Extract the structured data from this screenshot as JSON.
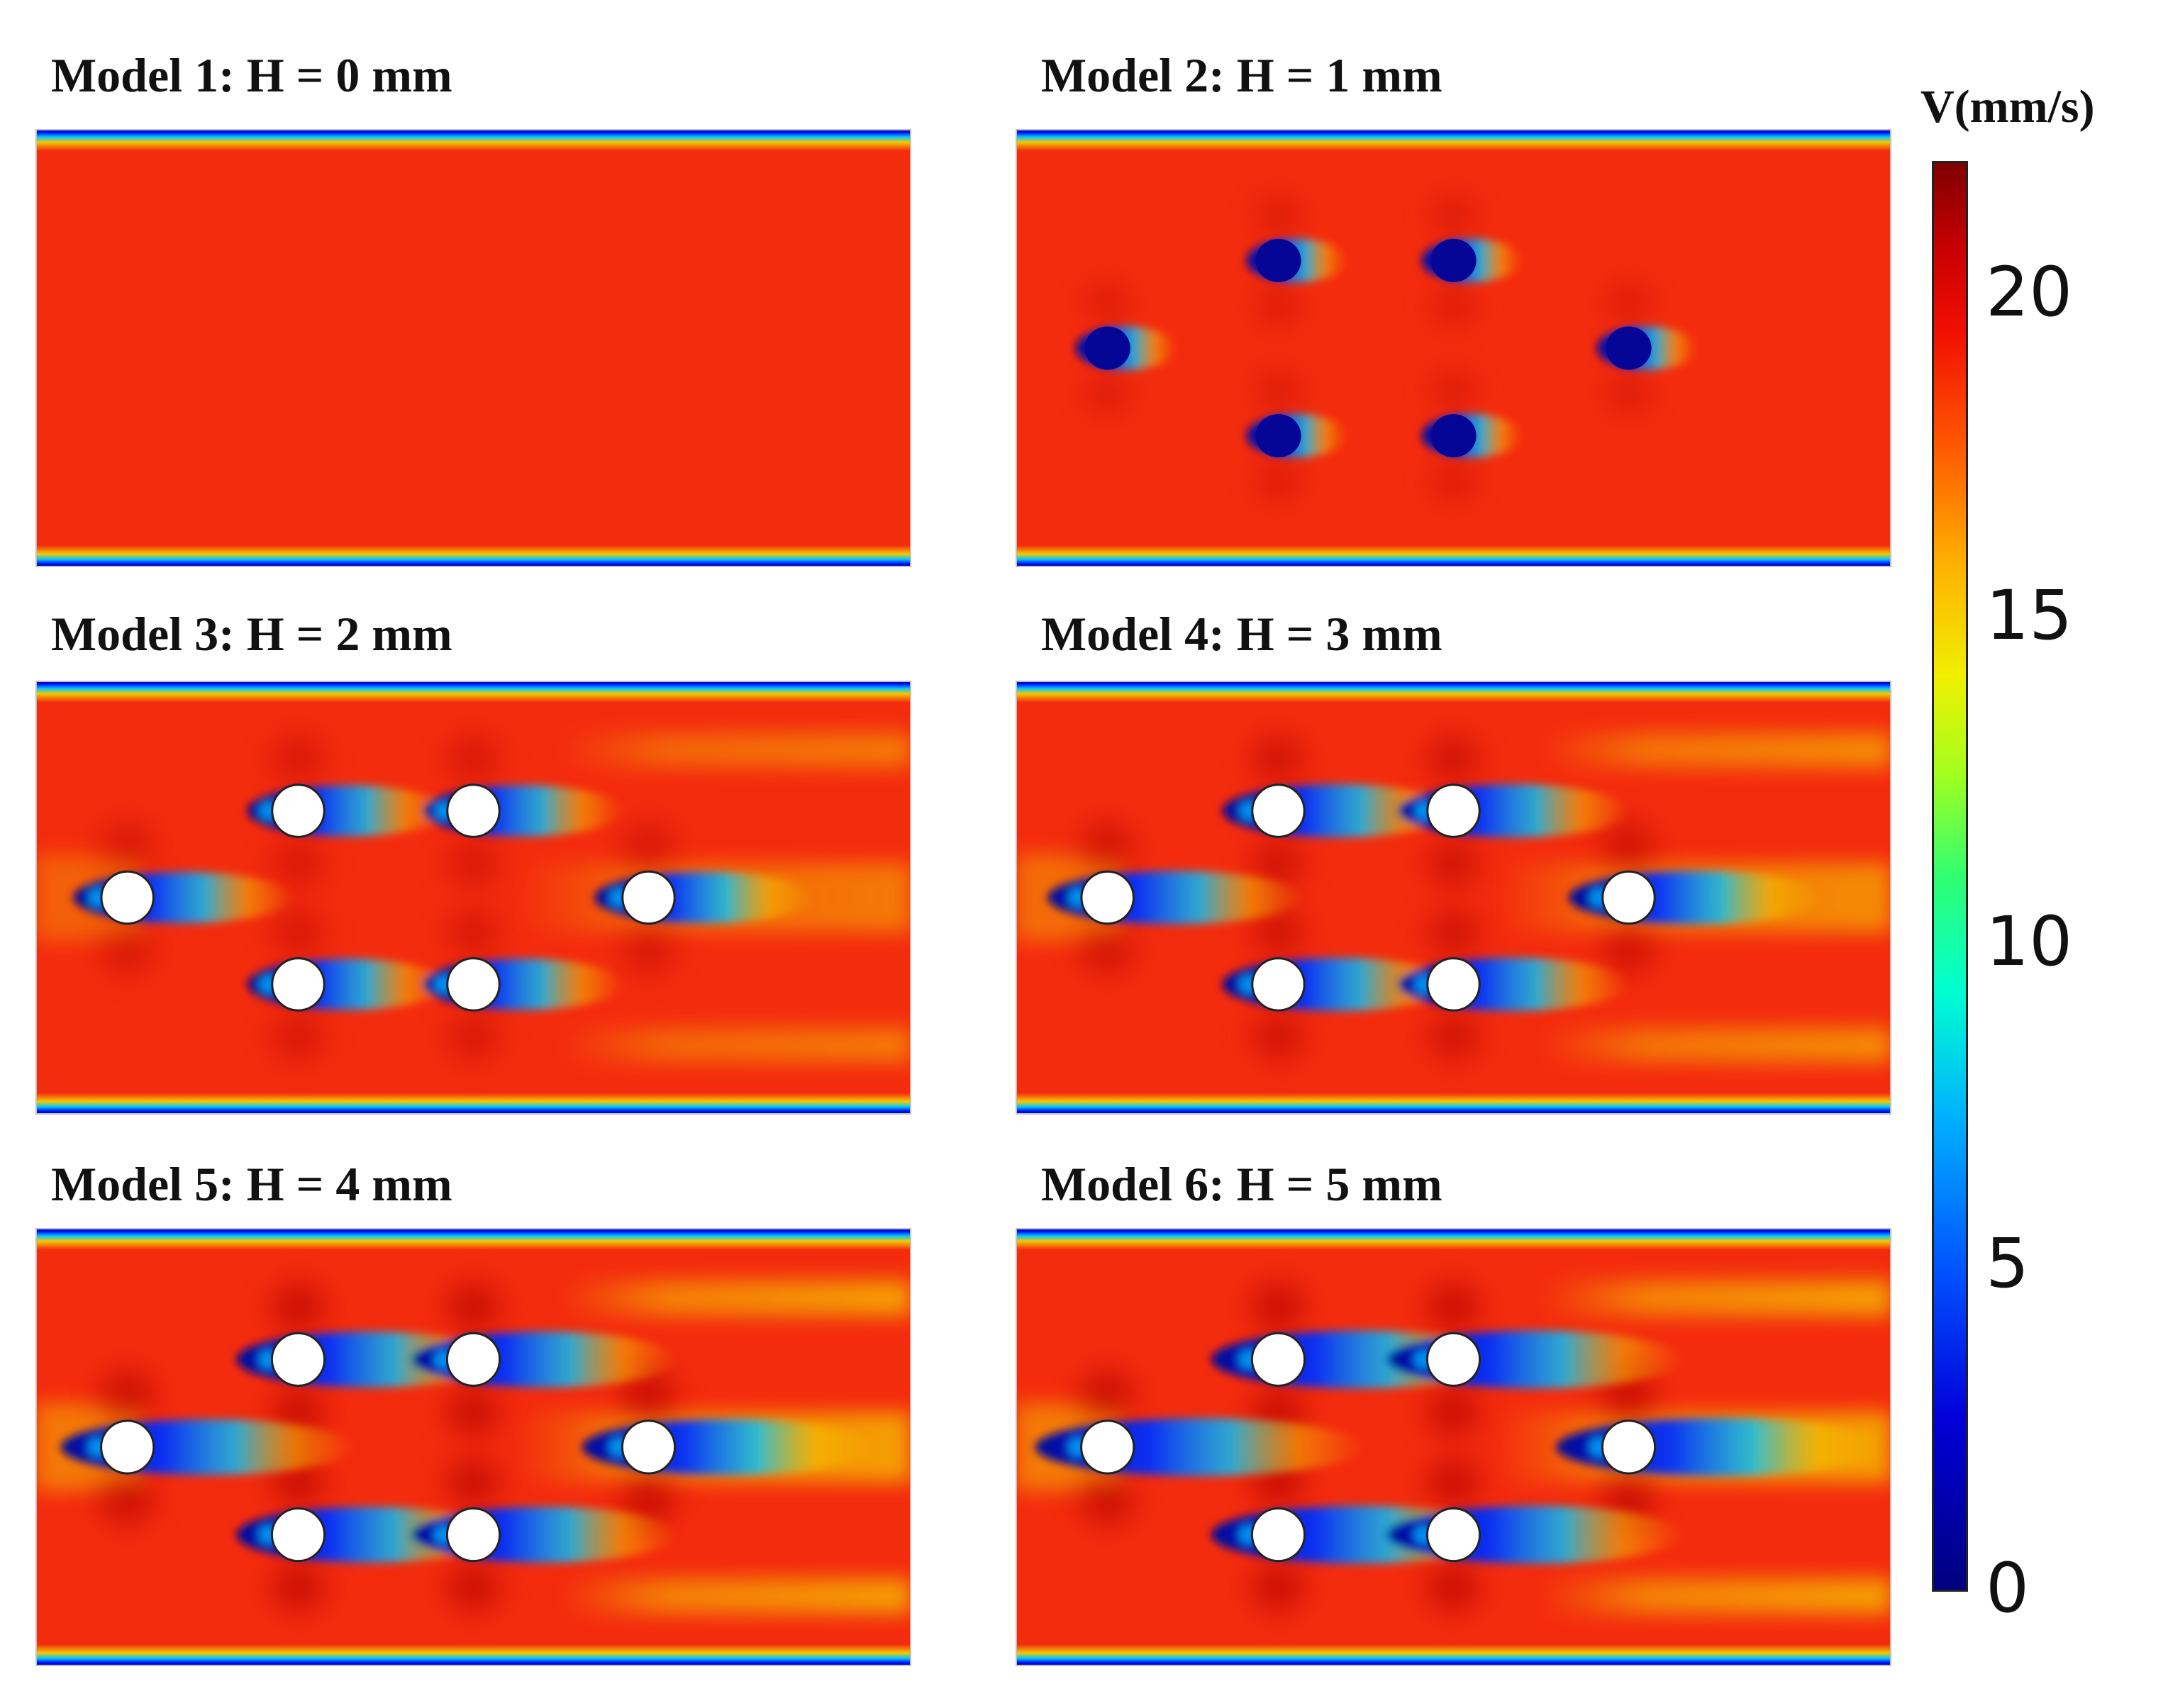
{
  "panels": [
    {
      "title": "Model 1: H = 0 mm",
      "h_mm": 0,
      "cylinders": false
    },
    {
      "title": "Model 2: H = 1 mm",
      "h_mm": 1,
      "cylinders": true
    },
    {
      "title": "Model 3: H = 2 mm",
      "h_mm": 2,
      "cylinders": true
    },
    {
      "title": "Model 4: H = 3 mm",
      "h_mm": 3,
      "cylinders": true
    },
    {
      "title": "Model 5: H = 4 mm",
      "h_mm": 4,
      "cylinders": true
    },
    {
      "title": "Model 6: H = 5 mm",
      "h_mm": 5,
      "cylinders": true
    }
  ],
  "colorbar": {
    "title": "V(mm/s)",
    "ticks": [
      "20",
      "15",
      "10",
      "5",
      "0"
    ],
    "colormap": "jet"
  },
  "colors": {
    "bulk_flow": "#f42c0e",
    "fast_flow": "#b40000",
    "slow_core": "#050596",
    "mid_flow": "#f5c800",
    "wall_cyan": "#00c8ff",
    "cylinder_fill": "#ffffff"
  }
}
